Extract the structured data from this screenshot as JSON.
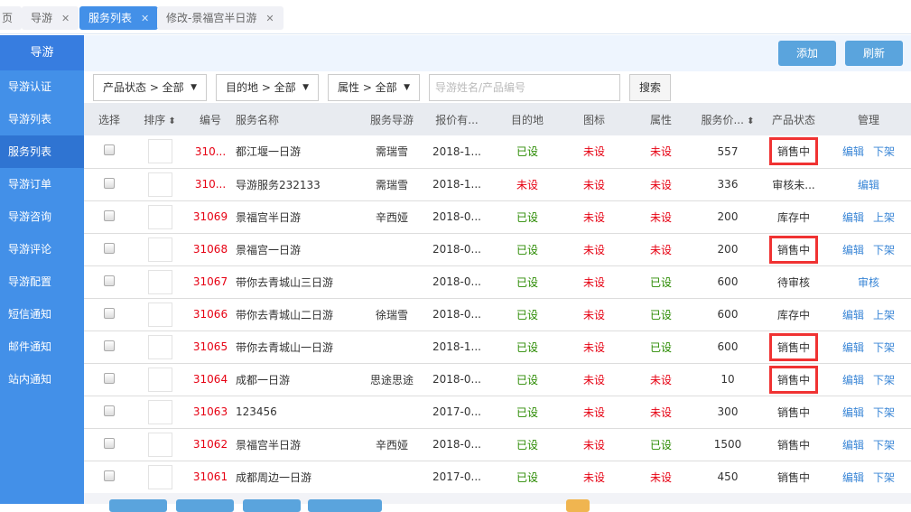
{
  "tabs": [
    {
      "label": "页"
    },
    {
      "label": "导游"
    },
    {
      "label": "服务列表"
    },
    {
      "label": "修改-景福宫半日游"
    }
  ],
  "sidebar": {
    "title": "导游",
    "items": [
      "导游认证",
      "导游列表",
      "服务列表",
      "导游订单",
      "导游咨询",
      "导游评论",
      "导游配置",
      "短信通知",
      "邮件通知",
      "站内通知"
    ],
    "active": "服务列表"
  },
  "toolbar": {
    "add": "添加",
    "refresh": "刷新"
  },
  "filters": {
    "status": "产品状态 > 全部",
    "destination": "目的地 > 全部",
    "attribute": "属性 > 全部",
    "search_placeholder": "导游姓名/产品编号",
    "search_button": "搜索"
  },
  "columns": [
    "选择",
    "排序",
    "编号",
    "服务名称",
    "服务导游",
    "报价有...",
    "目的地",
    "图标",
    "属性",
    "服务价...",
    "产品状态",
    "管理"
  ],
  "rows": [
    {
      "id": "310...",
      "name": "都江堰一日游",
      "guide": "需瑞雪",
      "date": "2018-1...",
      "dest": "已设",
      "icon": "未设",
      "attr": "未设",
      "price": "557",
      "status": "销售中",
      "hl": true,
      "actions": [
        "编辑",
        "下架"
      ]
    },
    {
      "id": "310...",
      "name": "导游服务232133",
      "guide": "需瑞雪",
      "date": "2018-1...",
      "dest": "未设",
      "icon": "未设",
      "attr": "未设",
      "price": "336",
      "status": "审核未...",
      "hl": false,
      "actions": [
        "编辑"
      ]
    },
    {
      "id": "31069",
      "name": "景福宫半日游",
      "guide": "辛西娅",
      "date": "2018-0...",
      "dest": "已设",
      "icon": "未设",
      "attr": "未设",
      "price": "200",
      "status": "库存中",
      "hl": false,
      "actions": [
        "编辑",
        "上架"
      ]
    },
    {
      "id": "31068",
      "name": "景福宫一日游",
      "guide": "",
      "date": "2018-0...",
      "dest": "已设",
      "icon": "未设",
      "attr": "未设",
      "price": "200",
      "status": "销售中",
      "hl": true,
      "actions": [
        "编辑",
        "下架"
      ]
    },
    {
      "id": "31067",
      "name": "带你去青城山三日游",
      "guide": "",
      "date": "2018-0...",
      "dest": "已设",
      "icon": "未设",
      "attr": "已设",
      "price": "600",
      "status": "待审核",
      "hl": false,
      "actions": [
        "审核"
      ]
    },
    {
      "id": "31066",
      "name": "带你去青城山二日游",
      "guide": "徐瑞雪",
      "date": "2018-0...",
      "dest": "已设",
      "icon": "未设",
      "attr": "已设",
      "price": "600",
      "status": "库存中",
      "hl": false,
      "actions": [
        "编辑",
        "上架"
      ]
    },
    {
      "id": "31065",
      "name": "带你去青城山一日游",
      "guide": "",
      "date": "2018-1...",
      "dest": "已设",
      "icon": "未设",
      "attr": "已设",
      "price": "600",
      "status": "销售中",
      "hl": true,
      "actions": [
        "编辑",
        "下架"
      ]
    },
    {
      "id": "31064",
      "name": "成都一日游",
      "guide": "思途思途",
      "date": "2018-0...",
      "dest": "已设",
      "icon": "未设",
      "attr": "未设",
      "price": "10",
      "status": "销售中",
      "hl": true,
      "actions": [
        "编辑",
        "下架"
      ]
    },
    {
      "id": "31063",
      "name": "123456",
      "guide": "",
      "date": "2017-0...",
      "dest": "已设",
      "icon": "未设",
      "attr": "未设",
      "price": "300",
      "status": "销售中",
      "hl": false,
      "actions": [
        "编辑",
        "下架"
      ]
    },
    {
      "id": "31062",
      "name": "景福宫半日游",
      "guide": "辛西娅",
      "date": "2018-0...",
      "dest": "已设",
      "icon": "未设",
      "attr": "已设",
      "price": "1500",
      "status": "销售中",
      "hl": false,
      "actions": [
        "编辑",
        "下架"
      ]
    },
    {
      "id": "31061",
      "name": "成都周边一日游",
      "guide": "",
      "date": "2017-0...",
      "dest": "已设",
      "icon": "未设",
      "attr": "未设",
      "price": "450",
      "status": "销售中",
      "hl": false,
      "actions": [
        "编辑",
        "下架"
      ]
    }
  ],
  "colors": {
    "accent": "#4390e8",
    "set": "#2a8a00",
    "unset": "#e60012",
    "highlight": "#f03232"
  }
}
